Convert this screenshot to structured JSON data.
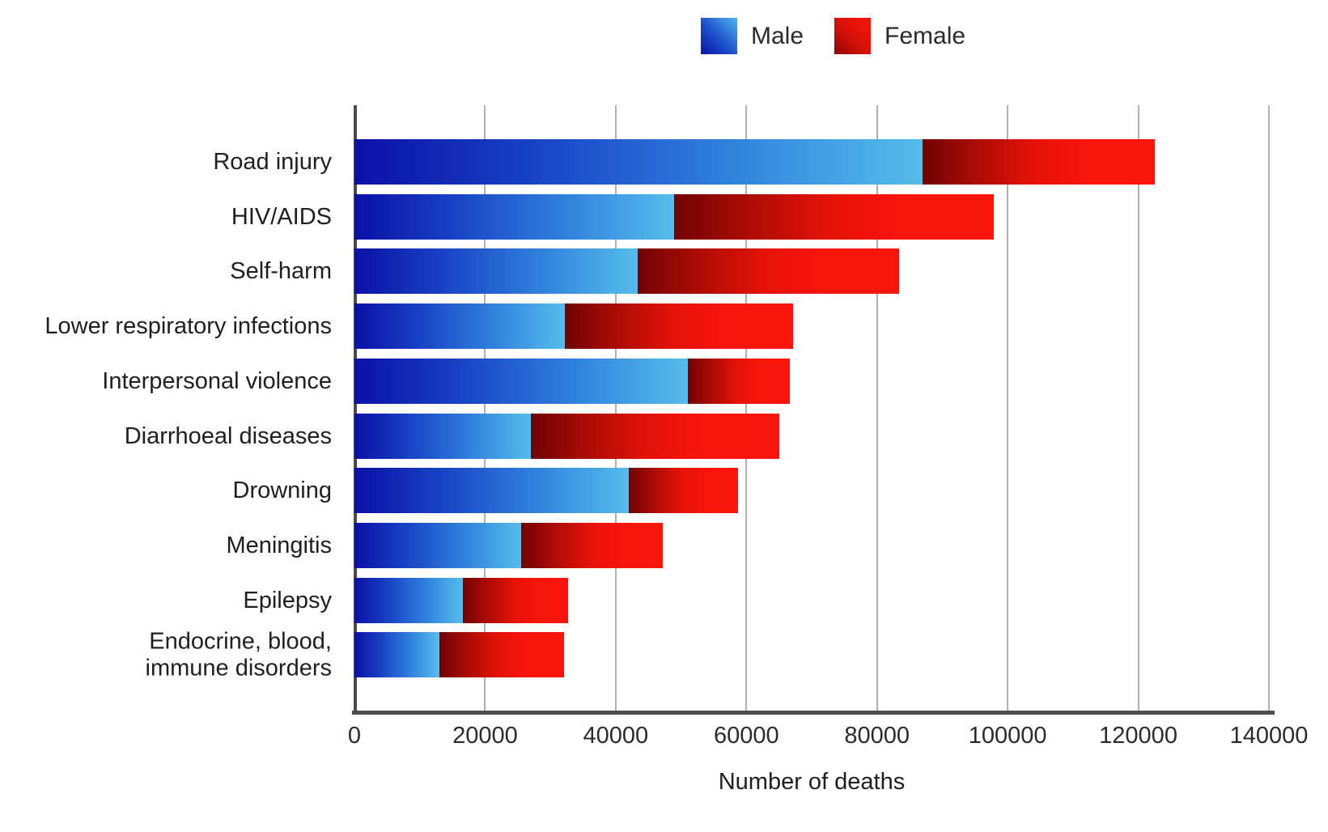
{
  "legend": {
    "items": [
      {
        "label": "Male"
      },
      {
        "label": "Female"
      }
    ]
  },
  "chart_data": {
    "type": "bar",
    "orientation": "horizontal",
    "stacked": true,
    "title": "",
    "xlabel": "Number of deaths",
    "ylabel": "",
    "xlim": [
      0,
      140000
    ],
    "x_ticks": [
      0,
      20000,
      40000,
      60000,
      80000,
      100000,
      120000,
      140000
    ],
    "grid": true,
    "legend_position": "top",
    "categories": [
      "Road injury",
      "HIV/AIDS",
      "Self-harm",
      "Lower respiratory infections",
      "Interpersonal violence",
      "Diarrhoeal diseases",
      "Drowning",
      "Meningitis",
      "Epilepsy",
      "Endocrine, blood,\nimmune disorders"
    ],
    "series": [
      {
        "name": "Male",
        "color_start": "#0b10a6",
        "color_end": "#55bcec",
        "values": [
          87000,
          48900,
          43400,
          32200,
          51000,
          27000,
          42000,
          25500,
          16600,
          13000
        ]
      },
      {
        "name": "Female",
        "color_start": "#6f0303",
        "color_end": "#f9150c",
        "values": [
          35500,
          49000,
          40000,
          35000,
          15700,
          38000,
          16700,
          21700,
          16100,
          19100
        ]
      }
    ],
    "totals": [
      122500,
      97900,
      83400,
      67200,
      66700,
      65000,
      58700,
      47200,
      32700,
      32100
    ]
  },
  "colors": {
    "gridline": "#b0b0b0",
    "axis": "#4d4d4d",
    "text": "#1f1f1f"
  }
}
